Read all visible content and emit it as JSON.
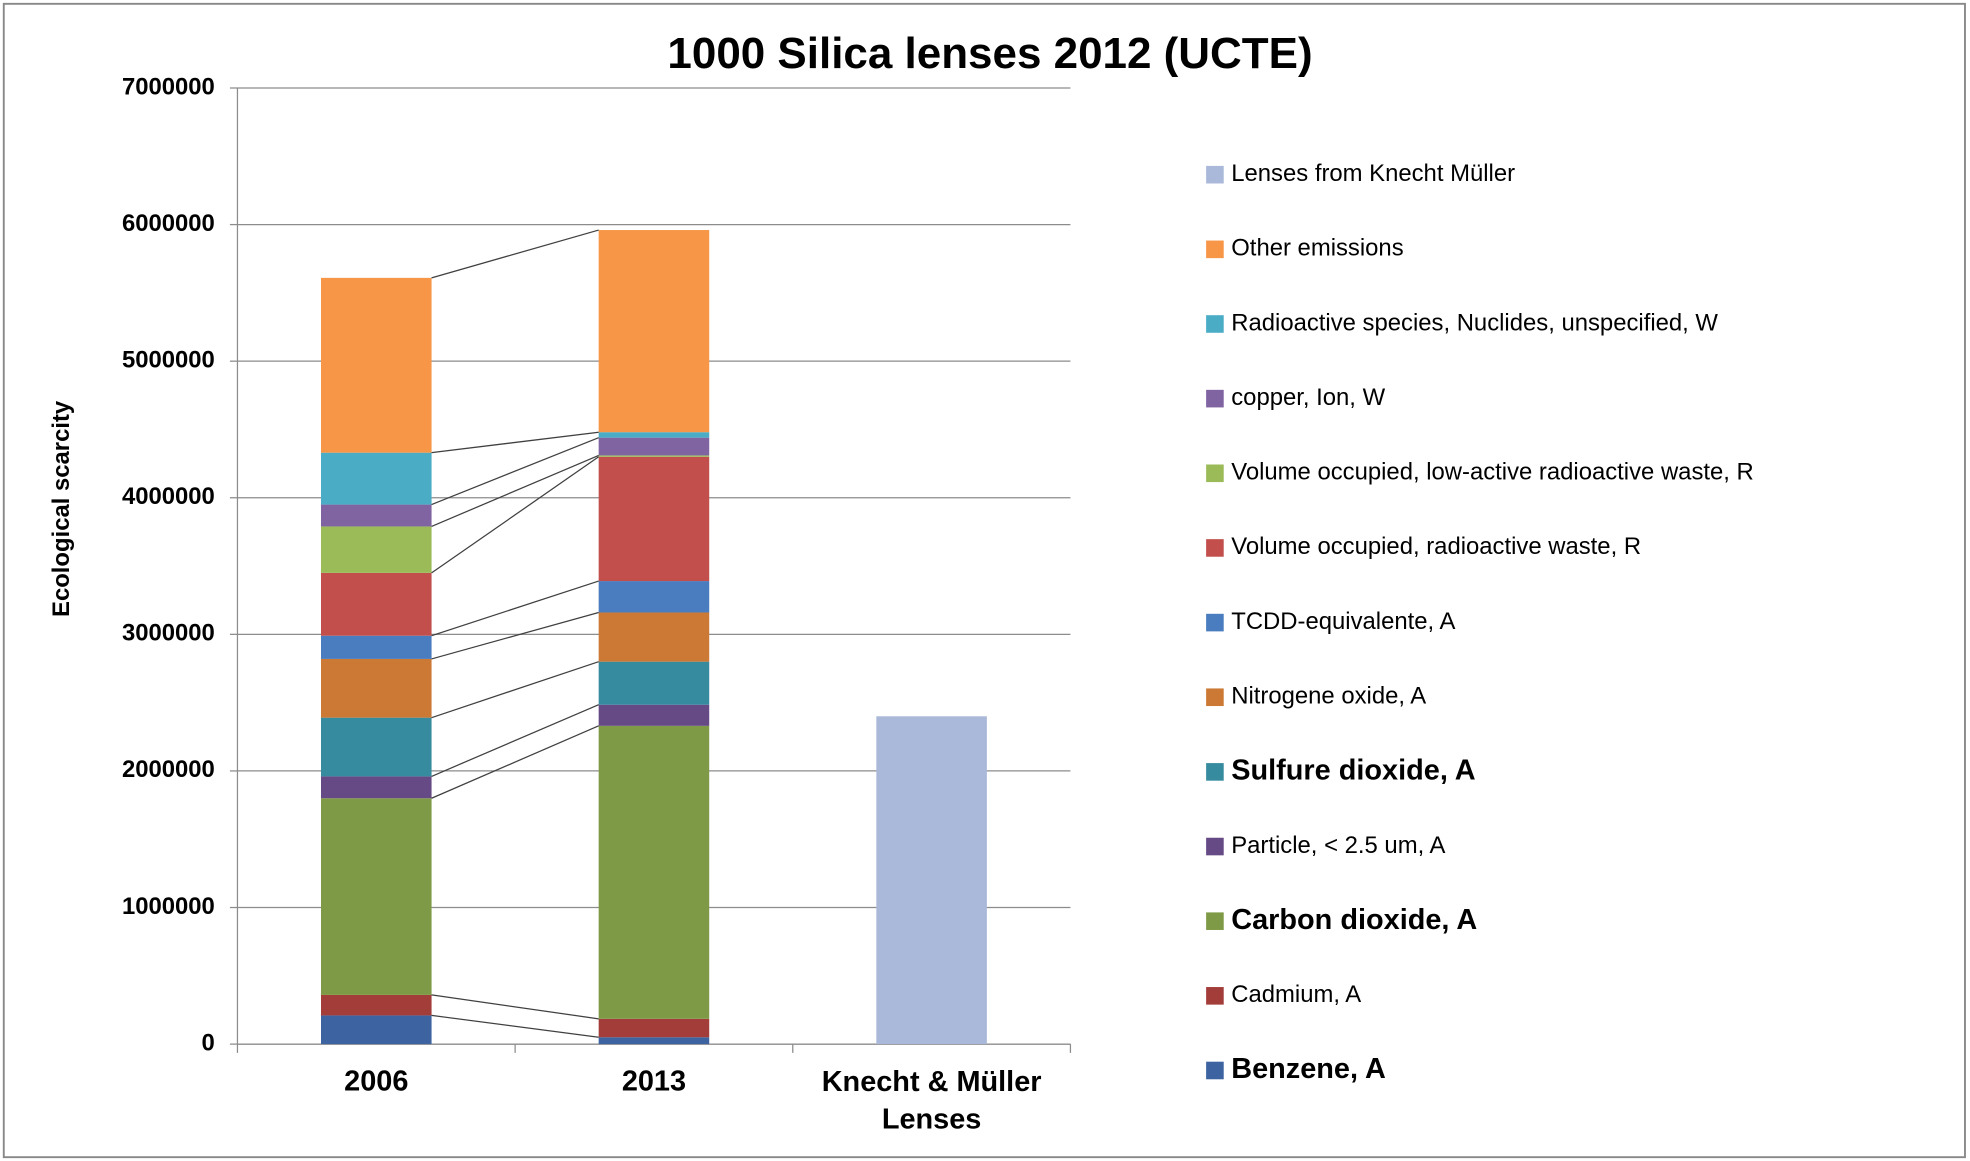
{
  "chart_data": {
    "type": "stacked_bar",
    "title": "1000 Silica lenses 2012 (UCTE)",
    "y_label": "Ecological scarcity",
    "categories": [
      "2006",
      "2013",
      "Knecht & Müller Lenses"
    ],
    "ylim": [
      0,
      7000000
    ],
    "yticks": [
      0,
      1000000,
      2000000,
      3000000,
      4000000,
      5000000,
      6000000,
      7000000
    ],
    "grid": true,
    "legend": "right",
    "connector_lines": true,
    "series": [
      {
        "name": "Benzene,  A",
        "color": "#3d64a0",
        "bold": true,
        "values": [
          210000,
          50000,
          null
        ]
      },
      {
        "name": "Cadmium,  A",
        "color": "#a33d3a",
        "values": [
          150000,
          135000,
          null
        ]
      },
      {
        "name": "Carbon dioxide,  A",
        "color": "#7e9a46",
        "bold": true,
        "values": [
          1440000,
          2145000,
          null
        ]
      },
      {
        "name": "Particle, < 2.5 um,  A",
        "color": "#654a85",
        "values": [
          160000,
          155000,
          null
        ]
      },
      {
        "name": "Sulfure dioxide,  A",
        "color": "#378b9f",
        "bold": true,
        "values": [
          430000,
          315000,
          null
        ]
      },
      {
        "name": "Nitrogene oxide,  A",
        "color": "#cb7934",
        "values": [
          430000,
          360000,
          null
        ]
      },
      {
        "name": "TCDD-equivalente, A",
        "color": "#4a7cc0",
        "values": [
          170000,
          230000,
          null
        ]
      },
      {
        "name": "Volume occupied, radioactive waste,  R",
        "color": "#c24f4c",
        "values": [
          460000,
          910000,
          null
        ]
      },
      {
        "name": "Volume occupied, low-active radioactive waste,  R",
        "color": "#9bbb59",
        "values": [
          340000,
          10000,
          null
        ]
      },
      {
        "name": "copper, Ion,  W",
        "color": "#8064a2",
        "values": [
          160000,
          130000,
          null
        ]
      },
      {
        "name": "Radioactive species, Nuclides, unspecified,  W",
        "color": "#4bacc6",
        "values": [
          380000,
          40000,
          null
        ]
      },
      {
        "name": "Other emissions",
        "color": "#f79646",
        "values": [
          1280000,
          1480000,
          null
        ]
      },
      {
        "name": "Lenses from Knecht Müller",
        "color": "#aab9d9",
        "values": [
          null,
          null,
          2400000
        ]
      }
    ]
  }
}
